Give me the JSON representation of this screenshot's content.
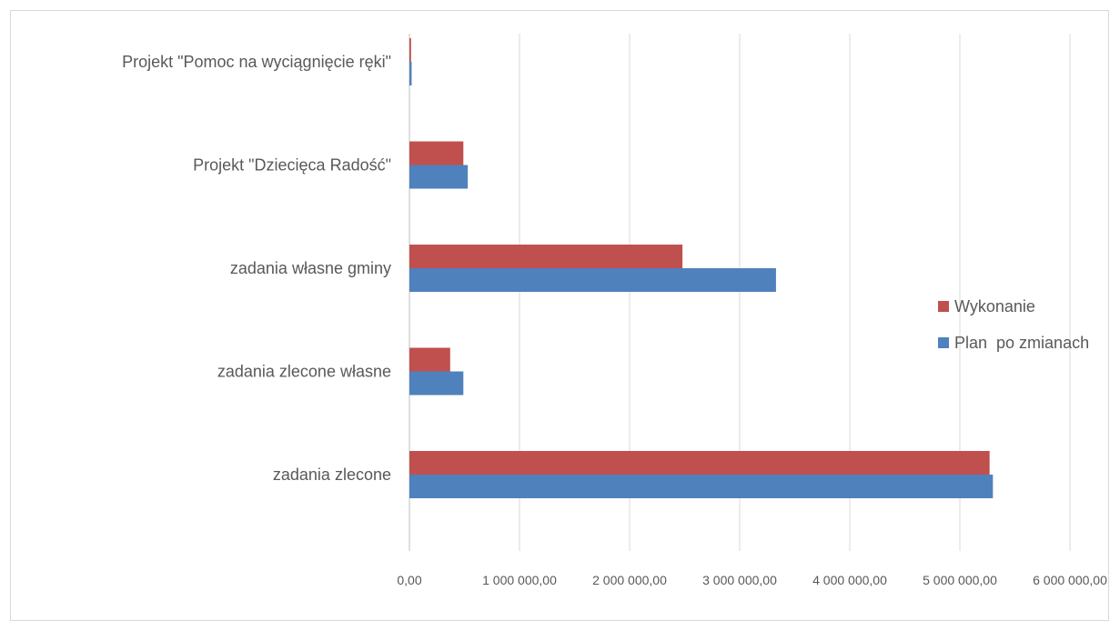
{
  "chart_data": {
    "type": "bar",
    "orientation": "horizontal",
    "title": "",
    "xlabel": "",
    "ylabel": "",
    "categories": [
      "Projekt \"Pomoc na wyciągnięcie ręki\"",
      "Projekt \"Dziecięca Radość\"",
      "zadania własne gminy",
      "zadania zlecone własne",
      "zadania zlecone"
    ],
    "series": [
      {
        "name": "Wykonanie",
        "color": "#c0504d",
        "values": [
          15000,
          490000,
          2480000,
          370000,
          5270000
        ]
      },
      {
        "name": "Plan  po zmianach",
        "color": "#4f81bd",
        "values": [
          20000,
          530000,
          3330000,
          490000,
          5300000
        ]
      }
    ],
    "xlim": [
      0,
      6000000
    ],
    "xticks": [
      0,
      1000000,
      2000000,
      3000000,
      4000000,
      5000000,
      6000000
    ],
    "xtick_labels": [
      "0,00",
      "1 000 000,00",
      "2 000 000,00",
      "3 000 000,00",
      "4 000 000,00",
      "5 000 000,00",
      "6 000 000,00"
    ],
    "grid": "vertical",
    "legend_position": "right"
  }
}
